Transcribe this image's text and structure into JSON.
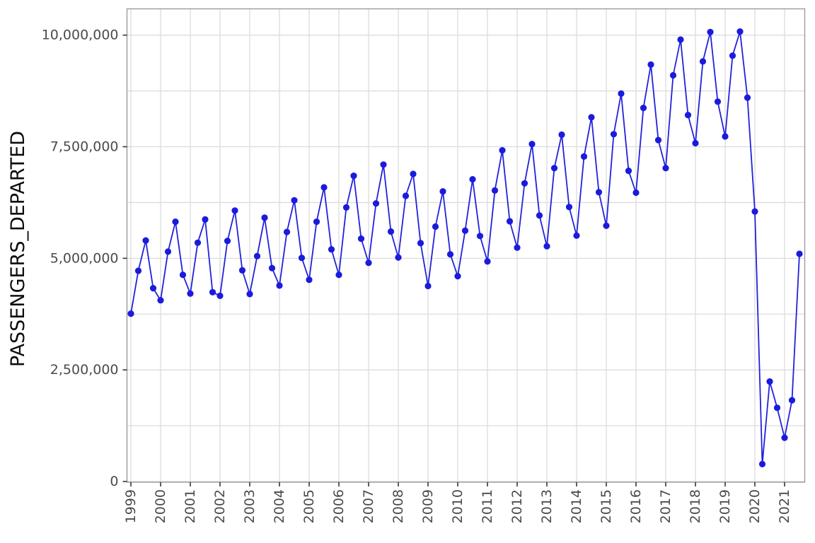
{
  "chart_data": {
    "type": "line",
    "title": "",
    "xlabel": "",
    "ylabel": "PASSENGERS_DEPARTED",
    "legend": "none",
    "grid": true,
    "marker": "point",
    "line_color": "#2121dd",
    "point_color": "#1b1bdd",
    "ylim": [
      0,
      10000000
    ],
    "yticks": [
      0,
      2500000,
      5000000,
      7500000,
      10000000
    ],
    "y_tick_labels": [
      "0",
      "2,500,000",
      "5,000,000",
      "7,500,000",
      "10,000,000"
    ],
    "y_minor_step": 1250000,
    "xticks": [
      1999,
      2000,
      2001,
      2002,
      2003,
      2004,
      2005,
      2006,
      2007,
      2008,
      2009,
      2010,
      2011,
      2012,
      2013,
      2014,
      2015,
      2016,
      2017,
      2018,
      2019,
      2020,
      2021
    ],
    "x_tick_labels": [
      "1999",
      "2000",
      "2001",
      "2002",
      "2003",
      "2004",
      "2005",
      "2006",
      "2007",
      "2008",
      "2009",
      "2010",
      "2011",
      "2012",
      "2013",
      "2014",
      "2015",
      "2016",
      "2017",
      "2018",
      "2019",
      "2020",
      "2021"
    ],
    "x_unit": "decimal year (quarter start)",
    "x": [
      1999.0,
      1999.25,
      1999.5,
      1999.75,
      2000.0,
      2000.25,
      2000.5,
      2000.75,
      2001.0,
      2001.25,
      2001.5,
      2001.75,
      2002.0,
      2002.25,
      2002.5,
      2002.75,
      2003.0,
      2003.25,
      2003.5,
      2003.75,
      2004.0,
      2004.25,
      2004.5,
      2004.75,
      2005.0,
      2005.25,
      2005.5,
      2005.75,
      2006.0,
      2006.25,
      2006.5,
      2006.75,
      2007.0,
      2007.25,
      2007.5,
      2007.75,
      2008.0,
      2008.25,
      2008.5,
      2008.75,
      2009.0,
      2009.25,
      2009.5,
      2009.75,
      2010.0,
      2010.25,
      2010.5,
      2010.75,
      2011.0,
      2011.25,
      2011.5,
      2011.75,
      2012.0,
      2012.25,
      2012.5,
      2012.75,
      2013.0,
      2013.25,
      2013.5,
      2013.75,
      2014.0,
      2014.25,
      2014.5,
      2014.75,
      2015.0,
      2015.25,
      2015.5,
      2015.75,
      2016.0,
      2016.25,
      2016.5,
      2016.75,
      2017.0,
      2017.25,
      2017.5,
      2017.75,
      2018.0,
      2018.25,
      2018.5,
      2018.75,
      2019.0,
      2019.25,
      2019.5,
      2019.75,
      2020.0,
      2020.25,
      2020.5,
      2020.75,
      2021.0,
      2021.25,
      2021.5
    ],
    "values": [
      3760000,
      4720000,
      5400000,
      4330000,
      4060000,
      5150000,
      5820000,
      4630000,
      4210000,
      5350000,
      5870000,
      4240000,
      4160000,
      5390000,
      6070000,
      4730000,
      4200000,
      5050000,
      5910000,
      4780000,
      4390000,
      5590000,
      6300000,
      5010000,
      4520000,
      5820000,
      6590000,
      5200000,
      4630000,
      6140000,
      6850000,
      5440000,
      4900000,
      6230000,
      7100000,
      5600000,
      5020000,
      6400000,
      6890000,
      5340000,
      4380000,
      5710000,
      6500000,
      5090000,
      4600000,
      5620000,
      6770000,
      5500000,
      4930000,
      6520000,
      7420000,
      5830000,
      5240000,
      6680000,
      7560000,
      5960000,
      5270000,
      7020000,
      7770000,
      6150000,
      5510000,
      7280000,
      8160000,
      6480000,
      5730000,
      7780000,
      8690000,
      6960000,
      6470000,
      8370000,
      9340000,
      7650000,
      7020000,
      9100000,
      9900000,
      8210000,
      7580000,
      9410000,
      10070000,
      8510000,
      7730000,
      9540000,
      10080000,
      8600000,
      6050000,
      390000,
      2240000,
      1650000,
      980000,
      1820000,
      5100000
    ]
  }
}
